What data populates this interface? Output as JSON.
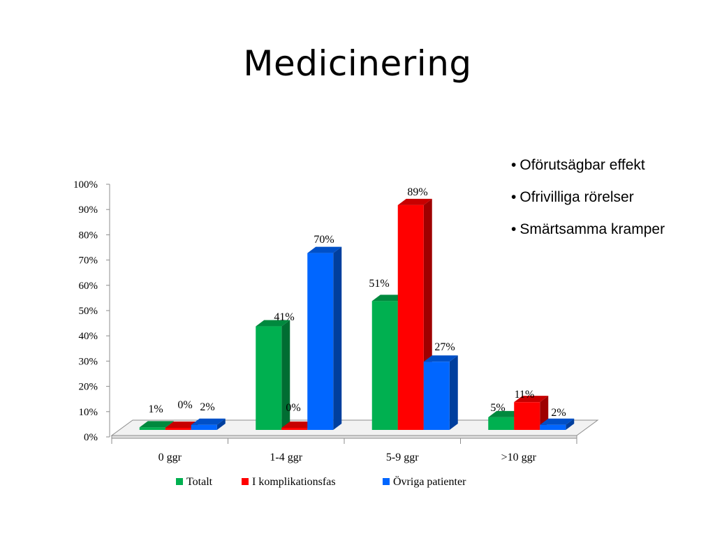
{
  "slide": {
    "title": "Medicinering",
    "bullets": [
      "Oförutsägbar effekt",
      "Ofrivilliga rörelser",
      "Smärtsamma kramper"
    ]
  },
  "chart_data": {
    "type": "bar",
    "style": "3d-clustered-column",
    "categories": [
      "0 ggr",
      "1-4 ggr",
      "5-9 ggr",
      ">10 ggr"
    ],
    "series": [
      {
        "name": "Totalt",
        "color": "#00b050",
        "values": [
          1,
          41,
          51,
          5
        ],
        "labels": [
          "1%",
          "41%",
          "51%",
          "5%"
        ]
      },
      {
        "name": "I komplikationsfas",
        "color": "#ff0000",
        "values": [
          0,
          0,
          89,
          11
        ],
        "labels": [
          "0%",
          "0%",
          "89%",
          "11%"
        ]
      },
      {
        "name": "Övriga patienter",
        "color": "#0066ff",
        "values": [
          2,
          70,
          27,
          2
        ],
        "labels": [
          "2%",
          "70%",
          "27%",
          "2%"
        ]
      }
    ],
    "ylim": [
      0,
      100
    ],
    "yticks": [
      "0%",
      "10%",
      "20%",
      "30%",
      "40%",
      "50%",
      "60%",
      "70%",
      "80%",
      "90%",
      "100%"
    ],
    "grid": false,
    "legend": "bottom"
  }
}
